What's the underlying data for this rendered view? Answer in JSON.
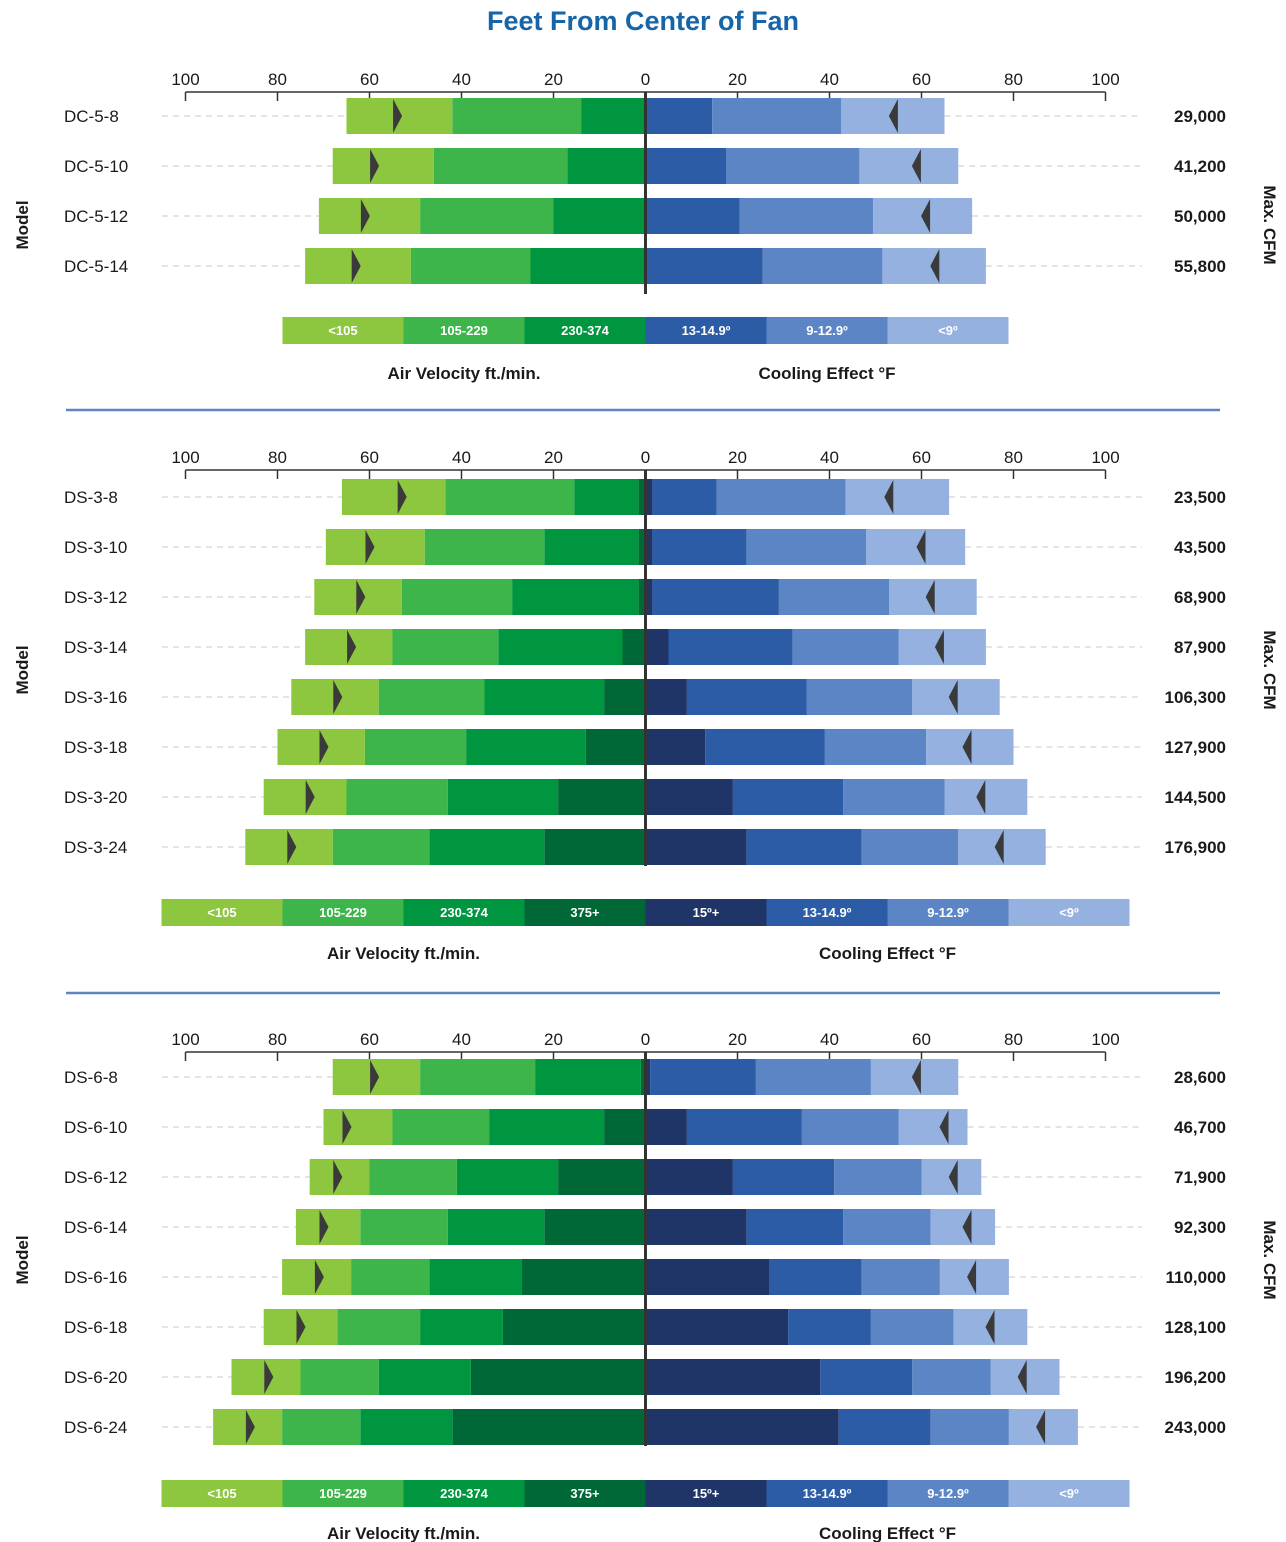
{
  "title": "Feet From Center of Fan",
  "colors": {
    "velocity": [
      "#8dc63f",
      "#3db54a",
      "#00953f",
      "#006837"
    ],
    "cooling": [
      "#1f3568",
      "#2d5ca6",
      "#5b85c5",
      "#94b1df"
    ],
    "divider": "#5e85bd",
    "text": "#1a1a1a",
    "title": "#1565a8"
  },
  "chart_data": [
    {
      "type": "bar",
      "subtype": "diverging-stacked-horizontal",
      "ylabel": "Model",
      "y2label": "Max. CFM",
      "xticks": [
        100,
        80,
        60,
        40,
        20,
        0,
        20,
        40,
        60,
        80,
        100
      ],
      "xlim": [
        -100,
        100
      ],
      "legend": {
        "velocity_title": "Air Velocity ft./min.",
        "velocity_ranges": [
          "<105",
          "105-229",
          "230-374"
        ],
        "cooling_title": "Cooling Effect °F",
        "cooling_ranges": [
          "13-14.9º",
          "9-12.9º",
          "<9º"
        ]
      },
      "rows": [
        {
          "model": "DC-5-8",
          "cfm": "29,000",
          "velocity": {
            "375+": 0,
            "230-374": 14,
            "105-229": 28,
            "<105": 23
          },
          "velocity_marker": 54,
          "cooling": {
            "15+": 0,
            "13-14.9": 14.5,
            "9-12.9": 28,
            "<9": 22.5
          },
          "cooling_marker": 54
        },
        {
          "model": "DC-5-10",
          "cfm": "41,200",
          "velocity": {
            "375+": 0,
            "230-374": 17,
            "105-229": 29,
            "<105": 22
          },
          "velocity_marker": 59,
          "cooling": {
            "15+": 0,
            "13-14.9": 17.5,
            "9-12.9": 29,
            "<9": 21.5
          },
          "cooling_marker": 59
        },
        {
          "model": "DC-5-12",
          "cfm": "50,000",
          "velocity": {
            "375+": 0,
            "230-374": 20,
            "105-229": 29,
            "<105": 22
          },
          "velocity_marker": 61,
          "cooling": {
            "15+": 0,
            "13-14.9": 20.5,
            "9-12.9": 29,
            "<9": 21.5
          },
          "cooling_marker": 61
        },
        {
          "model": "DC-5-14",
          "cfm": "55,800",
          "velocity": {
            "375+": 0,
            "230-374": 25,
            "105-229": 26,
            "<105": 23
          },
          "velocity_marker": 63,
          "cooling": {
            "15+": 0,
            "13-14.9": 25.5,
            "9-12.9": 26,
            "<9": 22.5
          },
          "cooling_marker": 63
        }
      ]
    },
    {
      "type": "bar",
      "subtype": "diverging-stacked-horizontal",
      "ylabel": "Model",
      "y2label": "Max. CFM",
      "xticks": [
        100,
        80,
        60,
        40,
        20,
        0,
        20,
        40,
        60,
        80,
        100
      ],
      "xlim": [
        -100,
        100
      ],
      "legend": {
        "velocity_title": "Air Velocity ft./min.",
        "velocity_ranges": [
          "<105",
          "105-229",
          "230-374",
          "375+"
        ],
        "cooling_title": "Cooling Effect °F",
        "cooling_ranges": [
          "15º+",
          "13-14.9º",
          "9-12.9º",
          "<9º"
        ]
      },
      "rows": [
        {
          "model": "DS-3-8",
          "cfm": "23,500",
          "velocity": {
            "375+": 1.5,
            "230-374": 14,
            "105-229": 28,
            "<105": 22.5
          },
          "velocity_marker": 53,
          "cooling": {
            "15+": 1.5,
            "13-14.9": 14,
            "9-12.9": 28,
            "<9": 22.5
          },
          "cooling_marker": 53
        },
        {
          "model": "DS-3-10",
          "cfm": "43,500",
          "velocity": {
            "375+": 1.5,
            "230-374": 20.5,
            "105-229": 26,
            "<105": 21.5
          },
          "velocity_marker": 60,
          "cooling": {
            "15+": 1.5,
            "13-14.9": 20.5,
            "9-12.9": 26,
            "<9": 21.5
          },
          "cooling_marker": 60
        },
        {
          "model": "DS-3-12",
          "cfm": "68,900",
          "velocity": {
            "375+": 1.5,
            "230-374": 27.5,
            "105-229": 24,
            "<105": 19
          },
          "velocity_marker": 62,
          "cooling": {
            "15+": 1.5,
            "13-14.9": 27.5,
            "9-12.9": 24,
            "<9": 19
          },
          "cooling_marker": 62
        },
        {
          "model": "DS-3-14",
          "cfm": "87,900",
          "velocity": {
            "375+": 5,
            "230-374": 27,
            "105-229": 23,
            "<105": 19
          },
          "velocity_marker": 64,
          "cooling": {
            "15+": 5,
            "13-14.9": 27,
            "9-12.9": 23,
            "<9": 19
          },
          "cooling_marker": 64
        },
        {
          "model": "DS-3-16",
          "cfm": "106,300",
          "velocity": {
            "375+": 9,
            "230-374": 26,
            "105-229": 23,
            "<105": 19
          },
          "velocity_marker": 67,
          "cooling": {
            "15+": 9,
            "13-14.9": 26,
            "9-12.9": 23,
            "<9": 19
          },
          "cooling_marker": 67
        },
        {
          "model": "DS-3-18",
          "cfm": "127,900",
          "velocity": {
            "375+": 13,
            "230-374": 26,
            "105-229": 22,
            "<105": 19
          },
          "velocity_marker": 70,
          "cooling": {
            "15+": 13,
            "13-14.9": 26,
            "9-12.9": 22,
            "<9": 19
          },
          "cooling_marker": 70
        },
        {
          "model": "DS-3-20",
          "cfm": "144,500",
          "velocity": {
            "375+": 19,
            "230-374": 24,
            "105-229": 22,
            "<105": 18
          },
          "velocity_marker": 73,
          "cooling": {
            "15+": 19,
            "13-14.9": 24,
            "9-12.9": 22,
            "<9": 18
          },
          "cooling_marker": 73
        },
        {
          "model": "DS-3-24",
          "cfm": "176,900",
          "velocity": {
            "375+": 22,
            "230-374": 25,
            "105-229": 21,
            "<105": 19
          },
          "velocity_marker": 77,
          "cooling": {
            "15+": 22,
            "13-14.9": 25,
            "9-12.9": 21,
            "<9": 19
          },
          "cooling_marker": 77
        }
      ]
    },
    {
      "type": "bar",
      "subtype": "diverging-stacked-horizontal",
      "ylabel": "Model",
      "y2label": "Max. CFM",
      "xticks": [
        100,
        80,
        60,
        40,
        20,
        0,
        20,
        40,
        60,
        80,
        100
      ],
      "xlim": [
        -100,
        100
      ],
      "legend": {
        "velocity_title": "Air Velocity ft./min.",
        "velocity_ranges": [
          "<105",
          "105-229",
          "230-374",
          "375+"
        ],
        "cooling_title": "Cooling Effect °F",
        "cooling_ranges": [
          "15º+",
          "13-14.9º",
          "9-12.9º",
          "<9º"
        ]
      },
      "rows": [
        {
          "model": "DS-6-8",
          "cfm": "28,600",
          "velocity": {
            "375+": 1,
            "230-374": 23,
            "105-229": 25,
            "<105": 19
          },
          "velocity_marker": 59,
          "cooling": {
            "15+": 1,
            "13-14.9": 23,
            "9-12.9": 25,
            "<9": 19
          },
          "cooling_marker": 59
        },
        {
          "model": "DS-6-10",
          "cfm": "46,700",
          "velocity": {
            "375+": 9,
            "230-374": 25,
            "105-229": 21,
            "<105": 15
          },
          "velocity_marker": 65,
          "cooling": {
            "15+": 9,
            "13-14.9": 25,
            "9-12.9": 21,
            "<9": 15
          },
          "cooling_marker": 65
        },
        {
          "model": "DS-6-12",
          "cfm": "71,900",
          "velocity": {
            "375+": 19,
            "230-374": 22,
            "105-229": 19,
            "<105": 13
          },
          "velocity_marker": 67,
          "cooling": {
            "15+": 19,
            "13-14.9": 22,
            "9-12.9": 19,
            "<9": 13
          },
          "cooling_marker": 67
        },
        {
          "model": "DS-6-14",
          "cfm": "92,300",
          "velocity": {
            "375+": 22,
            "230-374": 21,
            "105-229": 19,
            "<105": 14
          },
          "velocity_marker": 70,
          "cooling": {
            "15+": 22,
            "13-14.9": 21,
            "9-12.9": 19,
            "<9": 14
          },
          "cooling_marker": 70
        },
        {
          "model": "DS-6-16",
          "cfm": "110,000",
          "velocity": {
            "375+": 27,
            "230-374": 20,
            "105-229": 17,
            "<105": 15
          },
          "velocity_marker": 71,
          "cooling": {
            "15+": 27,
            "13-14.9": 20,
            "9-12.9": 17,
            "<9": 15
          },
          "cooling_marker": 71
        },
        {
          "model": "DS-6-18",
          "cfm": "128,100",
          "velocity": {
            "375+": 31,
            "230-374": 18,
            "105-229": 18,
            "<105": 16
          },
          "velocity_marker": 75,
          "cooling": {
            "15+": 31,
            "13-14.9": 18,
            "9-12.9": 18,
            "<9": 16
          },
          "cooling_marker": 75
        },
        {
          "model": "DS-6-20",
          "cfm": "196,200",
          "velocity": {
            "375+": 38,
            "230-374": 20,
            "105-229": 17,
            "<105": 15
          },
          "velocity_marker": 82,
          "cooling": {
            "15+": 38,
            "13-14.9": 20,
            "9-12.9": 17,
            "<9": 15
          },
          "cooling_marker": 82
        },
        {
          "model": "DS-6-24",
          "cfm": "243,000",
          "velocity": {
            "375+": 42,
            "230-374": 20,
            "105-229": 17,
            "<105": 15
          },
          "velocity_marker": 86,
          "cooling": {
            "15+": 42,
            "13-14.9": 20,
            "9-12.9": 17,
            "<9": 15
          },
          "cooling_marker": 86
        }
      ]
    }
  ]
}
